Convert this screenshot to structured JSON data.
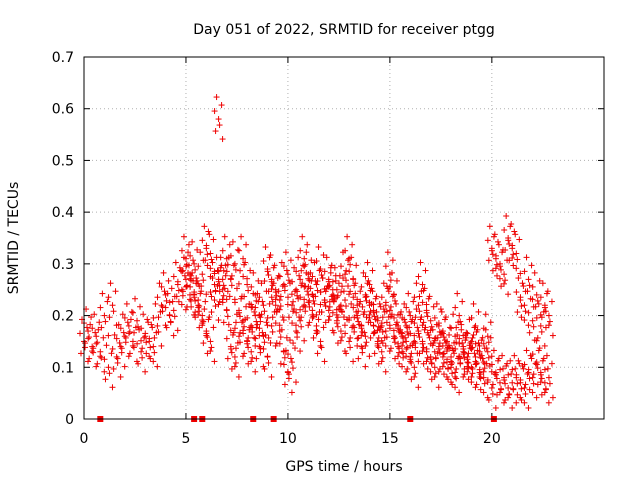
{
  "chart_data": {
    "type": "scatter",
    "title": "Day 051 of 2022, SRMTID for receiver ptgg",
    "xlabel": "GPS time / hours",
    "ylabel": "SRMTID / TECUs",
    "xlim": [
      0,
      25.5
    ],
    "ylim": [
      0,
      0.7
    ],
    "xticks": [
      0,
      5,
      10,
      15,
      20
    ],
    "xtick_labels": [
      "0",
      "5",
      "10",
      "15",
      "20"
    ],
    "yticks": [
      0,
      0.1,
      0.2,
      0.3,
      0.4,
      0.5,
      0.6,
      0.7
    ],
    "ytick_labels": [
      "0",
      "0.1",
      "0.2",
      "0.3",
      "0.4",
      "0.5",
      "0.6",
      "0.7"
    ],
    "grid": true,
    "marker": "+",
    "color": "#ee0000",
    "series": [
      {
        "name": "SRMTID",
        "x": [
          0.0,
          0.2,
          0.4,
          0.6,
          0.8,
          1.0,
          1.2,
          1.4,
          1.6,
          1.8,
          2.0,
          2.2,
          2.4,
          2.6,
          2.8,
          3.0,
          3.2,
          3.4,
          3.6,
          3.8,
          4.0,
          4.2,
          4.4,
          4.6,
          4.8,
          5.0,
          5.2,
          5.4,
          5.6,
          5.8,
          6.0,
          6.2,
          6.4,
          6.6,
          6.8,
          7.0,
          7.2,
          7.4,
          7.6,
          7.8,
          8.0,
          8.2,
          8.4,
          8.6,
          8.8,
          9.0,
          9.2,
          9.4,
          9.6,
          9.8,
          10.0,
          10.2,
          10.4,
          10.6,
          10.8,
          11.0,
          11.2,
          11.4,
          11.6,
          11.8,
          12.0,
          12.2,
          12.4,
          12.6,
          12.8,
          13.0,
          13.2,
          13.4,
          13.6,
          13.8,
          14.0,
          14.2,
          14.4,
          14.6,
          14.8,
          15.0,
          15.2,
          15.4,
          15.6,
          15.8,
          16.0,
          16.2,
          16.4,
          16.6,
          16.8,
          17.0,
          17.2,
          17.4,
          17.6,
          17.8,
          18.0,
          18.2,
          18.4,
          18.6,
          18.8,
          19.0,
          19.2,
          19.4,
          19.6,
          19.8,
          20.0,
          20.2,
          20.4,
          20.6,
          20.8,
          21.0,
          21.2,
          21.4,
          21.6,
          21.8,
          22.0,
          22.2,
          22.4,
          22.6,
          22.8
        ],
        "y": [
          0.15,
          0.17,
          0.14,
          0.16,
          0.13,
          0.2,
          0.1,
          0.22,
          0.12,
          0.14,
          0.16,
          0.18,
          0.15,
          0.19,
          0.13,
          0.16,
          0.15,
          0.14,
          0.18,
          0.22,
          0.24,
          0.2,
          0.21,
          0.26,
          0.25,
          0.27,
          0.24,
          0.3,
          0.23,
          0.28,
          0.33,
          0.32,
          0.26,
          0.27,
          0.25,
          0.31,
          0.27,
          0.3,
          0.21,
          0.19,
          0.26,
          0.18,
          0.24,
          0.2,
          0.22,
          0.29,
          0.27,
          0.25,
          0.23,
          0.26,
          0.28,
          0.22,
          0.25,
          0.27,
          0.31,
          0.28,
          0.24,
          0.26,
          0.29,
          0.23,
          0.21,
          0.25,
          0.19,
          0.17,
          0.23,
          0.15,
          0.18,
          0.2,
          0.14,
          0.16,
          0.22,
          0.18,
          0.15,
          0.13,
          0.17,
          0.21,
          0.16,
          0.14,
          0.16,
          0.18,
          0.2,
          0.15,
          0.22,
          0.26,
          0.21,
          0.19,
          0.13,
          0.18,
          0.17,
          0.15,
          0.12,
          0.16,
          0.2,
          0.14,
          0.12,
          0.15,
          0.18,
          0.13,
          0.11,
          0.16,
          0.33,
          0.31,
          0.3,
          0.28,
          0.35,
          0.33,
          0.32,
          0.23,
          0.22,
          0.27,
          0.19,
          0.24,
          0.18,
          0.22,
          0.2
        ],
        "x2": [
          5.0,
          5.2,
          5.4,
          5.6,
          5.8,
          6.0,
          6.2,
          6.4,
          6.6,
          6.8,
          7.0,
          7.2,
          7.4,
          7.6,
          7.8,
          8.0,
          8.2,
          8.4,
          8.6,
          8.8,
          9.0,
          9.2,
          9.4,
          9.6,
          9.8,
          10.0,
          10.2,
          10.4,
          10.6,
          10.8,
          11.0,
          11.2,
          11.4,
          11.6,
          11.8,
          12.0,
          12.2,
          12.4,
          12.6,
          12.8,
          13.0,
          13.2,
          13.4,
          13.6,
          13.8,
          14.0,
          14.2,
          14.4,
          14.6,
          14.8,
          15.0,
          15.2,
          15.4,
          15.6,
          15.8,
          16.0,
          16.2,
          16.4,
          16.6,
          16.8,
          17.0,
          17.2,
          17.4,
          17.6,
          17.8,
          18.0,
          18.2,
          18.4,
          18.6,
          18.8,
          19.0,
          19.2,
          19.4,
          19.6,
          19.8,
          20.0,
          20.2,
          20.4,
          20.6,
          20.8,
          21.0,
          21.2,
          21.4,
          21.6,
          21.8,
          22.0,
          22.2,
          22.4,
          22.6,
          22.8
        ],
        "y2": [
          0.31,
          0.28,
          0.24,
          0.22,
          0.2,
          0.17,
          0.15,
          0.23,
          0.58,
          0.27,
          0.21,
          0.14,
          0.12,
          0.16,
          0.31,
          0.15,
          0.13,
          0.2,
          0.14,
          0.16,
          0.12,
          0.18,
          0.22,
          0.17,
          0.13,
          0.09,
          0.11,
          0.17,
          0.19,
          0.22,
          0.24,
          0.21,
          0.18,
          0.15,
          0.23,
          0.27,
          0.24,
          0.25,
          0.22,
          0.28,
          0.31,
          0.27,
          0.22,
          0.18,
          0.24,
          0.26,
          0.21,
          0.19,
          0.18,
          0.22,
          0.28,
          0.24,
          0.18,
          0.13,
          0.15,
          0.12,
          0.1,
          0.17,
          0.15,
          0.13,
          0.12,
          0.1,
          0.14,
          0.12,
          0.11,
          0.1,
          0.09,
          0.12,
          0.13,
          0.11,
          0.1,
          0.12,
          0.09,
          0.08,
          0.13,
          0.06,
          0.09,
          0.07,
          0.08,
          0.06,
          0.07,
          0.08,
          0.07,
          0.06,
          0.09,
          0.08,
          0.11,
          0.09,
          0.07,
          0.08
        ]
      }
    ],
    "markers_at_zero": [
      0.8,
      5.4,
      5.8,
      8.3,
      9.3,
      16.0,
      20.1
    ]
  }
}
